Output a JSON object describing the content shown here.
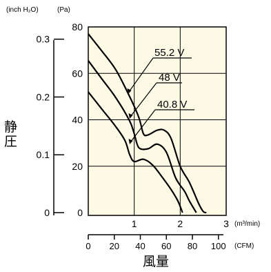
{
  "chart_data": {
    "type": "line",
    "ylabel": "静圧",
    "xlabel": "風量",
    "y_units": {
      "inch": "(inch H₂O)",
      "pa": "(Pa)"
    },
    "x_units": {
      "m3": "(m³/min)",
      "cfm": "(CFM)"
    },
    "y_pa_ticks": [
      "0",
      "20",
      "40",
      "60",
      "80"
    ],
    "y_inch_ticks": [
      "0",
      "0.1",
      "0.2",
      "0.3"
    ],
    "x_m3_ticks": [
      "1",
      "2",
      "3"
    ],
    "x_cfm_ticks": [
      "0",
      "20",
      "40",
      "60",
      "80",
      "100"
    ],
    "xlim_m3": [
      0,
      3
    ],
    "ylim_pa": [
      0,
      80
    ],
    "grid": true,
    "series": [
      {
        "name": "55.2 V",
        "x": [
          0,
          0.3,
          0.6,
          0.9,
          1.1,
          1.2,
          1.3,
          1.5,
          1.65,
          1.8,
          2.0,
          2.2,
          2.4,
          2.5,
          2.57
        ],
        "y": [
          77,
          69.5,
          61.5,
          50,
          41,
          34,
          33.5,
          35.5,
          35.5,
          32,
          20,
          13,
          4,
          0.5,
          0
        ]
      },
      {
        "name": "48 V",
        "x": [
          0,
          0.3,
          0.6,
          0.9,
          1.0,
          1.1,
          1.3,
          1.5,
          1.7,
          1.9,
          2.1,
          2.2,
          2.35
        ],
        "y": [
          65.5,
          57.5,
          49.5,
          39.5,
          34,
          28,
          27.5,
          29.5,
          26,
          15,
          9,
          5,
          0
        ]
      },
      {
        "name": "40.8 V",
        "x": [
          0,
          0.3,
          0.6,
          0.8,
          0.9,
          1.0,
          1.2,
          1.4,
          1.6,
          1.8,
          1.95,
          2.05
        ],
        "y": [
          52,
          44.5,
          37,
          31,
          25,
          22,
          23,
          20.5,
          15.5,
          10,
          5,
          0
        ]
      }
    ],
    "annotations": [
      "55.2 V",
      "48 V",
      "40.8 V"
    ]
  }
}
